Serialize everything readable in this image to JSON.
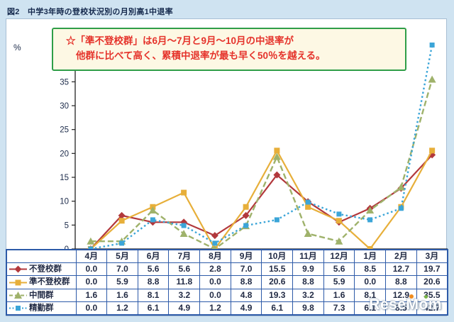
{
  "page": {
    "title": "図2　中学3年時の登校状況別の月別高1中退率"
  },
  "callout": {
    "line1": "☆「準不登校群」は6月～7月と9月～10月の中退率が",
    "line2": "他群に比べて高く、累積中退率が最も早く50％を越える。"
  },
  "watermark": {
    "text": "ReseMom"
  },
  "chart_data": {
    "type": "line",
    "title": "中学3年時の登校状況別の月別高1中退率",
    "categories": [
      "4月",
      "5月",
      "6月",
      "7月",
      "8月",
      "9月",
      "10月",
      "11月",
      "12月",
      "1月",
      "2月",
      "3月"
    ],
    "xlabel": "",
    "ylabel": "%",
    "ylim": [
      0,
      45
    ],
    "ytick_step": 5,
    "grid": false,
    "legend_position": "table-left",
    "series": [
      {
        "name": "不登校群",
        "color": "#b2383c",
        "marker": "diamond",
        "line_style": "solid",
        "values": [
          0.0,
          7.0,
          5.6,
          5.6,
          2.8,
          7.0,
          15.5,
          9.9,
          5.6,
          8.5,
          12.7,
          19.7
        ]
      },
      {
        "name": "準不登校群",
        "color": "#e7af3a",
        "marker": "square",
        "line_style": "solid",
        "values": [
          0.0,
          5.9,
          8.8,
          11.8,
          0.0,
          8.8,
          20.6,
          8.8,
          5.9,
          0.0,
          8.8,
          20.6
        ]
      },
      {
        "name": "中間群",
        "color": "#9fb26b",
        "marker": "triangle",
        "line_style": "dashed",
        "values": [
          1.6,
          1.6,
          8.1,
          3.2,
          0.0,
          4.8,
          19.3,
          3.2,
          1.6,
          8.1,
          12.9,
          35.5
        ]
      },
      {
        "name": "精勤群",
        "color": "#3ba5d8",
        "marker": "smallsquare",
        "line_style": "dotted",
        "values": [
          0.0,
          1.2,
          6.1,
          4.9,
          1.2,
          4.9,
          6.1,
          9.8,
          7.3,
          6.1,
          8.5,
          42.7
        ]
      }
    ]
  }
}
